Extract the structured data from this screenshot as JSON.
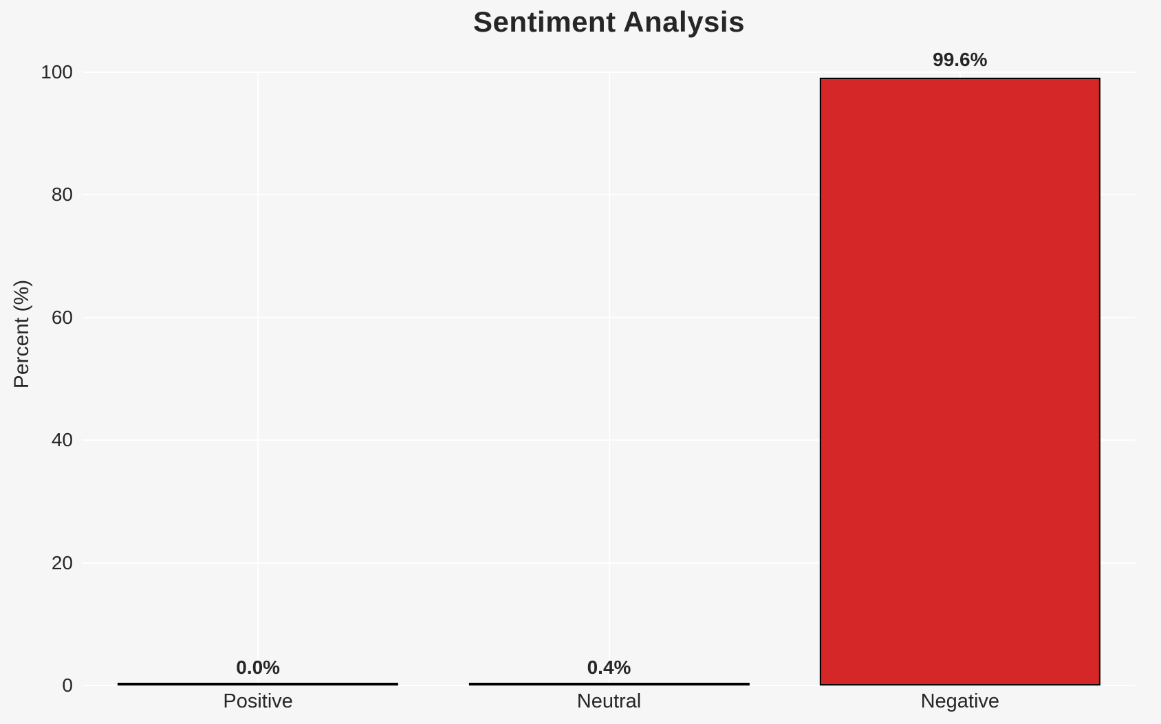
{
  "chart_data": {
    "type": "bar",
    "title": "Sentiment Analysis",
    "xlabel": "",
    "ylabel": "Percent (%)",
    "categories": [
      "Positive",
      "Neutral",
      "Negative"
    ],
    "values": [
      0.0,
      0.4,
      99.6
    ],
    "value_labels": [
      "0.0%",
      "0.4%",
      "99.6%"
    ],
    "ylim": [
      0,
      100
    ],
    "yticks": [
      0,
      20,
      40,
      60,
      80,
      100
    ],
    "ytick_labels_top_to_bottom": [
      "100",
      "80",
      "60",
      "40",
      "20",
      "0"
    ],
    "grid": true,
    "legend_position": "none",
    "bar_width_fraction": 0.8,
    "colors": {
      "bar_fills": [
        "none",
        "none",
        "#d62728"
      ],
      "bar_edge": "#000000",
      "background": "#f6f6f6",
      "gridline": "#ffffff",
      "text": "#262626"
    }
  }
}
